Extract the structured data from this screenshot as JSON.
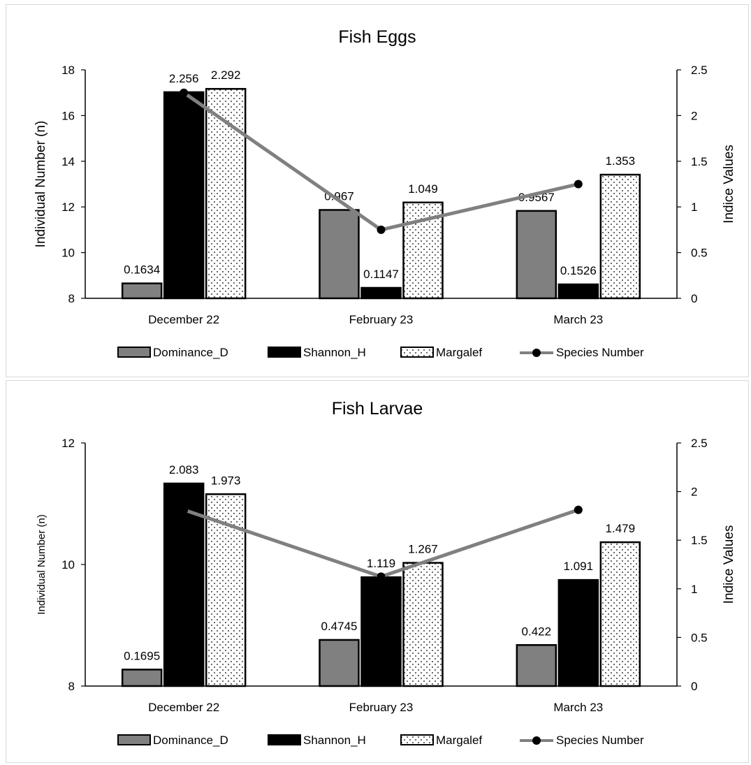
{
  "chart_data": [
    {
      "type": "bar",
      "title": "Fish Eggs",
      "categories": [
        "December 22",
        "February 23",
        "March 23"
      ],
      "ylabel": "Individual Number (n)",
      "ylim": [
        8,
        18
      ],
      "yticks": [
        8,
        10,
        12,
        14,
        16,
        18
      ],
      "y2label": "Indice Values",
      "y2lim": [
        0,
        2.5
      ],
      "y2ticks": [
        "0",
        "0.5",
        "1",
        "1.5",
        "2",
        "2.5"
      ],
      "series": [
        {
          "name": "Dominance_D",
          "type": "bar",
          "axis": "right",
          "fill": "#808080",
          "values": [
            0.1634,
            0.967,
            0.9567
          ],
          "labels": [
            "0.1634",
            "0.967",
            "0.9567"
          ]
        },
        {
          "name": "Shannon_H",
          "type": "bar",
          "axis": "right",
          "fill": "#000000",
          "values": [
            2.256,
            0.1147,
            0.1526
          ],
          "labels": [
            "2.256",
            "0.1147",
            "0.1526"
          ]
        },
        {
          "name": "Margalef",
          "type": "bar",
          "axis": "right",
          "fill": "dotted",
          "values": [
            2.292,
            1.049,
            1.353
          ],
          "labels": [
            "2.292",
            "1.049",
            "1.353"
          ]
        },
        {
          "name": "Species Number",
          "type": "line",
          "axis": "left",
          "color": "#808080",
          "values": [
            17,
            11,
            13
          ]
        }
      ],
      "legend": "bottom",
      "grid": false
    },
    {
      "type": "bar",
      "title": "Fish Larvae",
      "categories": [
        "December 22",
        "February 23",
        "March 23"
      ],
      "ylabel": "Individual Number (n)",
      "ylim": [
        8,
        12
      ],
      "yticks": [
        8,
        10,
        12
      ],
      "y2label": "Indice Values",
      "y2lim": [
        0,
        2.5
      ],
      "y2ticks": [
        "0",
        "0.5",
        "1",
        "1.5",
        "2",
        "2.5"
      ],
      "series": [
        {
          "name": "Dominance_D",
          "type": "bar",
          "axis": "right",
          "fill": "#808080",
          "values": [
            0.1695,
            0.4745,
            0.422
          ],
          "labels": [
            "0.1695",
            "0.4745",
            "0.422"
          ]
        },
        {
          "name": "Shannon_H",
          "type": "bar",
          "axis": "right",
          "fill": "#000000",
          "values": [
            2.083,
            1.119,
            1.091
          ],
          "labels": [
            "2.083",
            "1.119",
            "1.091"
          ]
        },
        {
          "name": "Margalef",
          "type": "bar",
          "axis": "right",
          "fill": "dotted",
          "values": [
            1.973,
            1.267,
            1.479
          ],
          "labels": [
            "1.973",
            "1.267",
            "1.479"
          ]
        },
        {
          "name": "Species Number",
          "type": "line",
          "axis": "left",
          "color": "#808080",
          "values": [
            10.9,
            9.8,
            10.9
          ]
        }
      ],
      "legend": "bottom",
      "grid": false
    }
  ]
}
